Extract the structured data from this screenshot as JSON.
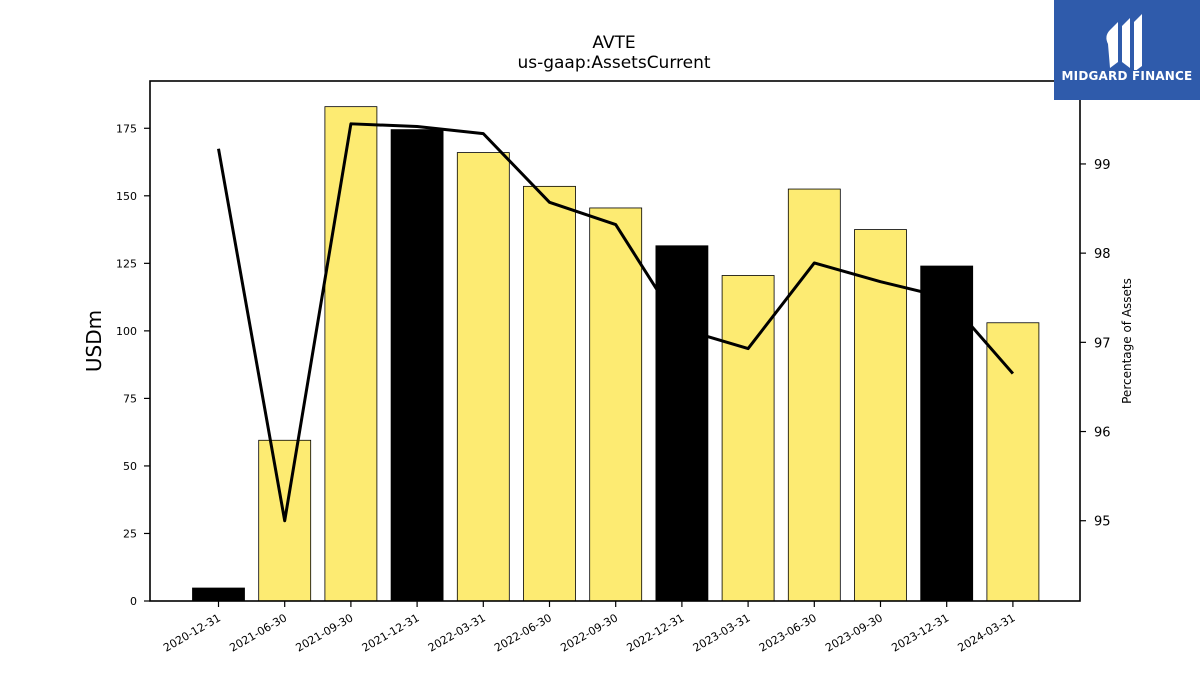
{
  "logo": {
    "text": "MIDGARD FINANCE"
  },
  "chart_data": {
    "type": "bar",
    "title": "AVTE",
    "subtitle": "us-gaap:AssetsCurrent",
    "ylabel": "USDm",
    "y2label": "Percentage of Assets",
    "categories": [
      "2020-12-31",
      "2021-06-30",
      "2021-09-30",
      "2021-12-31",
      "2022-03-31",
      "2022-06-30",
      "2022-09-30",
      "2022-12-31",
      "2023-03-31",
      "2023-06-30",
      "2023-09-30",
      "2023-12-31",
      "2024-03-31"
    ],
    "series": [
      {
        "values": [
          4.8,
          59.5,
          183,
          174.5,
          166,
          153.5,
          145.5,
          131.5,
          120.5,
          152.5,
          137.5,
          124,
          103
        ]
      },
      {
        "axis": "right",
        "type": "line",
        "values": [
          99.17,
          95.0,
          99.45,
          99.42,
          99.34,
          98.57,
          98.32,
          97.15,
          96.93,
          97.89,
          97.68,
          97.5,
          96.65
        ]
      }
    ],
    "bar_colors": [
      "#000000",
      "#fdeb72",
      "#fdeb72",
      "#000000",
      "#fdeb72",
      "#fdeb72",
      "#fdeb72",
      "#000000",
      "#fdeb72",
      "#fdeb72",
      "#fdeb72",
      "#000000",
      "#fdeb72"
    ],
    "line_color": "#000000",
    "ylim": [
      0,
      192.5
    ],
    "y2lim": [
      94.1,
      99.93
    ],
    "yticks": [
      0,
      25,
      50,
      75,
      100,
      125,
      150,
      175
    ],
    "y2ticks": [
      95,
      96,
      97,
      98,
      99
    ],
    "grid": false
  }
}
